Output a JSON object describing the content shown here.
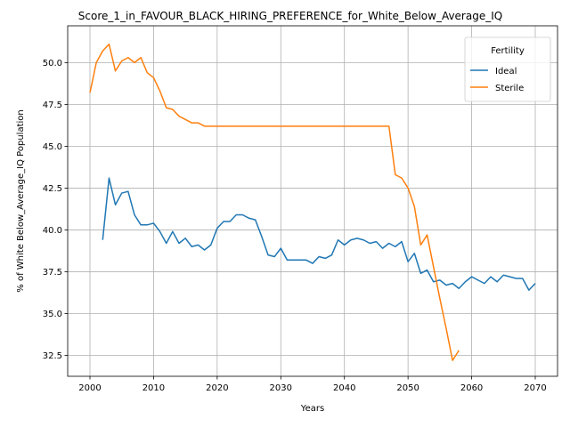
{
  "chart_data": {
    "type": "line",
    "title": "Score_1_in_FAVOUR_BLACK_HIRING_PREFERENCE_for_White_Below_Average_IQ",
    "xlabel": "Years",
    "ylabel": "% of White Below_Average_IQ Population",
    "xlim": [
      1996.5,
      2073.5
    ],
    "ylim": [
      31.25,
      52.2
    ],
    "xticks": [
      2000,
      2010,
      2020,
      2030,
      2040,
      2050,
      2060,
      2070
    ],
    "yticks": [
      32.5,
      35.0,
      37.5,
      40.0,
      42.5,
      45.0,
      47.5,
      50.0
    ],
    "xtick_labels": [
      "2000",
      "2010",
      "2020",
      "2030",
      "2040",
      "2050",
      "2060",
      "2070"
    ],
    "ytick_labels": [
      "32.5",
      "35.0",
      "37.5",
      "40.0",
      "42.5",
      "45.0",
      "47.5",
      "50.0"
    ],
    "grid": true,
    "legend": {
      "title": "Fertility",
      "placement": "top-right"
    },
    "series": [
      {
        "name": "Ideal",
        "color": "#1f77b4",
        "x": [
          2002,
          2003,
          2004,
          2005,
          2006,
          2007,
          2008,
          2009,
          2010,
          2011,
          2012,
          2013,
          2014,
          2015,
          2016,
          2017,
          2018,
          2019,
          2020,
          2021,
          2022,
          2023,
          2024,
          2025,
          2026,
          2027,
          2028,
          2029,
          2030,
          2031,
          2032,
          2033,
          2034,
          2035,
          2036,
          2037,
          2038,
          2039,
          2040,
          2041,
          2042,
          2043,
          2044,
          2045,
          2046,
          2047,
          2048,
          2049,
          2050,
          2051,
          2052,
          2053,
          2054,
          2055,
          2056,
          2057,
          2058,
          2059,
          2060,
          2061,
          2062,
          2063,
          2064,
          2065,
          2066,
          2067,
          2068,
          2069,
          2070
        ],
        "y": [
          39.4,
          43.1,
          41.5,
          42.2,
          42.3,
          40.9,
          40.3,
          40.3,
          40.4,
          39.9,
          39.2,
          39.9,
          39.2,
          39.5,
          39.0,
          39.1,
          38.8,
          39.1,
          40.1,
          40.5,
          40.5,
          40.9,
          40.9,
          40.7,
          40.6,
          39.6,
          38.5,
          38.4,
          38.9,
          38.2,
          38.2,
          38.2,
          38.2,
          38.0,
          38.4,
          38.3,
          38.5,
          39.4,
          39.1,
          39.4,
          39.5,
          39.4,
          39.2,
          39.3,
          38.9,
          39.2,
          39.0,
          39.3,
          38.1,
          38.6,
          37.4,
          37.6,
          36.9,
          37.0,
          36.7,
          36.8,
          36.5,
          36.9,
          37.2,
          37.0,
          36.8,
          37.2,
          36.9,
          37.3,
          37.2,
          37.1,
          37.1,
          36.4,
          36.8
        ]
      },
      {
        "name": "Sterile",
        "color": "#ff7f0e",
        "x": [
          2000,
          2001,
          2002,
          2003,
          2004,
          2005,
          2006,
          2007,
          2008,
          2009,
          2010,
          2011,
          2012,
          2013,
          2014,
          2015,
          2016,
          2017,
          2018,
          2019,
          2020,
          2025,
          2030,
          2035,
          2040,
          2045,
          2046,
          2047,
          2048,
          2049,
          2050,
          2051,
          2052,
          2053,
          2054,
          2055,
          2056,
          2057,
          2058
        ],
        "y": [
          48.2,
          50.0,
          50.7,
          51.1,
          49.5,
          50.1,
          50.3,
          50.0,
          50.3,
          49.4,
          49.1,
          48.3,
          47.3,
          47.2,
          46.8,
          46.6,
          46.4,
          46.4,
          46.2,
          46.2,
          46.2,
          46.2,
          46.2,
          46.2,
          46.2,
          46.2,
          46.2,
          46.2,
          43.3,
          43.1,
          42.5,
          41.4,
          39.1,
          39.7,
          37.8,
          35.9,
          34.1,
          32.2,
          32.8
        ]
      }
    ]
  }
}
